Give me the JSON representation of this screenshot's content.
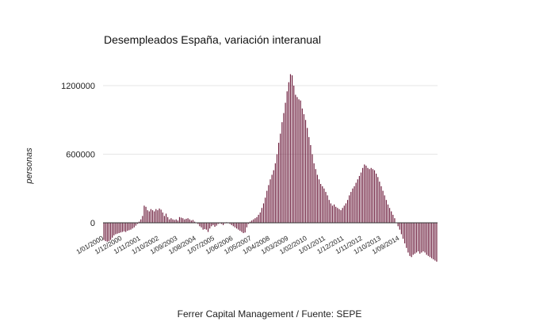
{
  "chart_data": {
    "type": "bar",
    "title": "Desempleados España, variación interanual",
    "xlabel": "",
    "ylabel": "personas",
    "source": "Ferrer Capital Management / Fuente: SEPE",
    "ylim": [
      -400000,
      1400000
    ],
    "y_ticks": [
      0,
      600000,
      1200000
    ],
    "y_tick_labels": [
      "0",
      "600000",
      "1200000"
    ],
    "grid": true,
    "bar_color": "#6b1a3a",
    "x_tick_labels": [
      "1/01/2000",
      "1/12/2000",
      "1/11/2001",
      "1/10/2002",
      "1/09/2003",
      "1/08/2004",
      "1/07/2005",
      "1/06/2006",
      "1/05/2007",
      "1/04/2008",
      "1/03/2009",
      "1/02/2010",
      "1/01/2011",
      "1/12/2011",
      "1/11/2012",
      "1/10/2013",
      "1/09/2014"
    ],
    "start": "2000-01",
    "values": [
      -150000,
      -160000,
      -165000,
      -160000,
      -150000,
      -130000,
      -110000,
      -100000,
      -95000,
      -90000,
      -85000,
      -80000,
      -75000,
      -80000,
      -70000,
      -65000,
      -60000,
      -50000,
      -40000,
      -25000,
      -10000,
      10000,
      30000,
      60000,
      150000,
      140000,
      110000,
      100000,
      120000,
      110000,
      100000,
      120000,
      110000,
      125000,
      115000,
      90000,
      60000,
      80000,
      50000,
      30000,
      40000,
      30000,
      25000,
      30000,
      20000,
      50000,
      45000,
      40000,
      30000,
      35000,
      40000,
      30000,
      20000,
      25000,
      10000,
      0,
      -10000,
      -30000,
      -40000,
      -60000,
      -55000,
      -60000,
      -80000,
      -50000,
      -30000,
      -20000,
      -35000,
      -25000,
      -10000,
      -5000,
      -10000,
      -20000,
      -5000,
      5000,
      0,
      -10000,
      -20000,
      -30000,
      -40000,
      -50000,
      -60000,
      -70000,
      -80000,
      -90000,
      -85000,
      -40000,
      -10000,
      10000,
      20000,
      30000,
      40000,
      50000,
      70000,
      90000,
      130000,
      170000,
      220000,
      280000,
      330000,
      380000,
      420000,
      460000,
      520000,
      600000,
      700000,
      780000,
      880000,
      960000,
      1050000,
      1150000,
      1230000,
      1300000,
      1290000,
      1200000,
      1120000,
      1100000,
      1080000,
      1070000,
      1000000,
      950000,
      900000,
      830000,
      750000,
      680000,
      600000,
      520000,
      470000,
      420000,
      380000,
      340000,
      320000,
      300000,
      270000,
      240000,
      200000,
      170000,
      150000,
      160000,
      140000,
      130000,
      120000,
      110000,
      130000,
      150000,
      170000,
      200000,
      240000,
      270000,
      300000,
      320000,
      350000,
      380000,
      410000,
      440000,
      480000,
      510000,
      500000,
      480000,
      470000,
      480000,
      470000,
      460000,
      430000,
      400000,
      360000,
      320000,
      280000,
      240000,
      200000,
      160000,
      130000,
      100000,
      70000,
      40000,
      0,
      -30000,
      -60000,
      -100000,
      -140000,
      -180000,
      -220000,
      -260000,
      -290000,
      -300000,
      -280000,
      -270000,
      -260000,
      -250000,
      -270000,
      -260000,
      -250000,
      -260000,
      -280000,
      -290000,
      -300000,
      -310000,
      -320000,
      -330000,
      -340000
    ]
  }
}
